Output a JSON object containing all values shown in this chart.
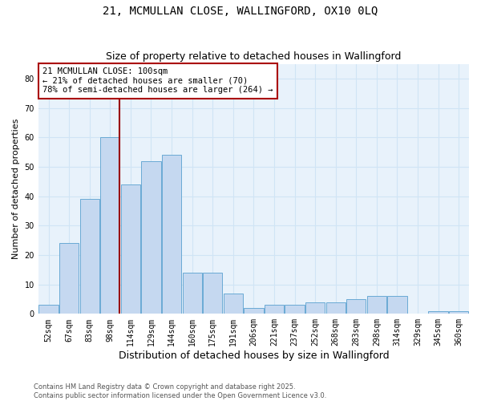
{
  "title1": "21, MCMULLAN CLOSE, WALLINGFORD, OX10 0LQ",
  "title2": "Size of property relative to detached houses in Wallingford",
  "xlabel": "Distribution of detached houses by size in Wallingford",
  "ylabel": "Number of detached properties",
  "categories": [
    "52sqm",
    "67sqm",
    "83sqm",
    "98sqm",
    "114sqm",
    "129sqm",
    "144sqm",
    "160sqm",
    "175sqm",
    "191sqm",
    "206sqm",
    "221sqm",
    "237sqm",
    "252sqm",
    "268sqm",
    "283sqm",
    "298sqm",
    "314sqm",
    "329sqm",
    "345sqm",
    "360sqm"
  ],
  "values": [
    3,
    24,
    39,
    60,
    44,
    52,
    54,
    14,
    14,
    7,
    2,
    3,
    3,
    4,
    4,
    5,
    6,
    6,
    0,
    1,
    1
  ],
  "bar_color": "#c5d8f0",
  "bar_edge_color": "#6aaad4",
  "background_color": "#e8f2fb",
  "grid_color": "#d0e4f5",
  "ylim": [
    0,
    85
  ],
  "yticks": [
    0,
    10,
    20,
    30,
    40,
    50,
    60,
    70,
    80
  ],
  "vline_x_index": 3,
  "vline_color": "#990000",
  "annotation_text": "21 MCMULLAN CLOSE: 100sqm\n← 21% of detached houses are smaller (70)\n78% of semi-detached houses are larger (264) →",
  "annotation_fontsize": 7.5,
  "annotation_box_color": "#ffffff",
  "annotation_border_color": "#aa0000",
  "footer_text": "Contains HM Land Registry data © Crown copyright and database right 2025.\nContains public sector information licensed under the Open Government Licence v3.0.",
  "title_fontsize": 10,
  "subtitle_fontsize": 9,
  "xlabel_fontsize": 9,
  "ylabel_fontsize": 8,
  "tick_fontsize": 7
}
